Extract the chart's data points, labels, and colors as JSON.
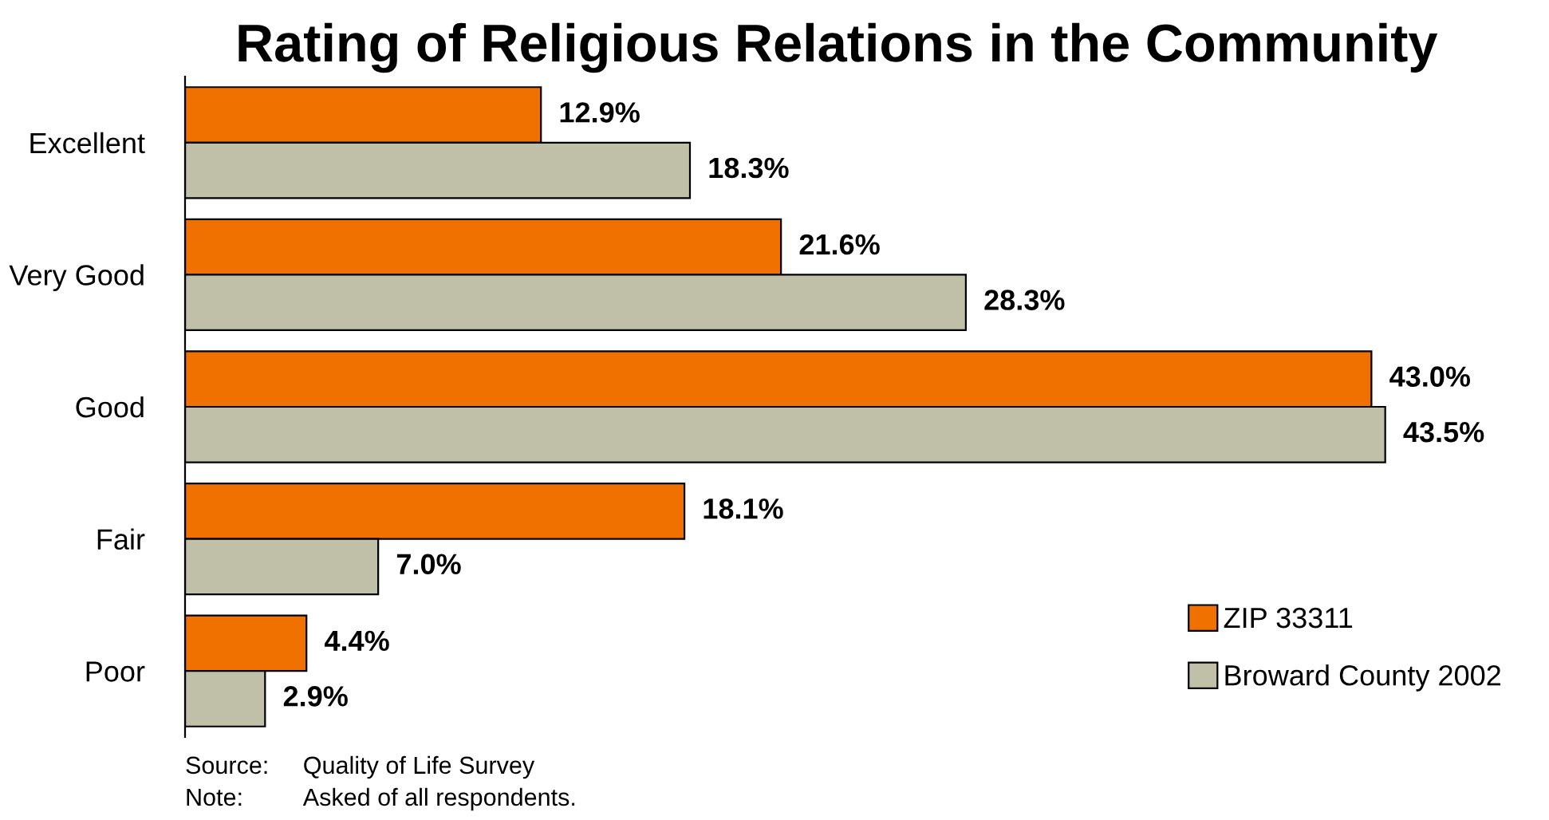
{
  "chart_data": {
    "type": "bar",
    "orientation": "horizontal",
    "title": "Rating of Religious Relations in the Community",
    "categories": [
      "Excellent",
      "Very Good",
      "Good",
      "Fair",
      "Poor"
    ],
    "series": [
      {
        "name": "ZIP 33311",
        "color": "#f07000",
        "values": [
          12.9,
          21.6,
          43.0,
          18.1,
          4.4
        ],
        "value_labels": [
          "12.9%",
          "21.6%",
          "43.0%",
          "18.1%",
          "4.4%"
        ]
      },
      {
        "name": "Broward County 2002",
        "color": "#c0c0a8",
        "values": [
          18.3,
          28.3,
          43.5,
          7.0,
          2.9
        ],
        "value_labels": [
          "18.3%",
          "28.3%",
          "43.5%",
          "7.0%",
          "2.9%"
        ]
      }
    ],
    "legend": "bottom right",
    "grid": false,
    "annotations": [
      "Source:     Quality of Life Survey",
      "Note:         Asked of all respondents."
    ]
  }
}
